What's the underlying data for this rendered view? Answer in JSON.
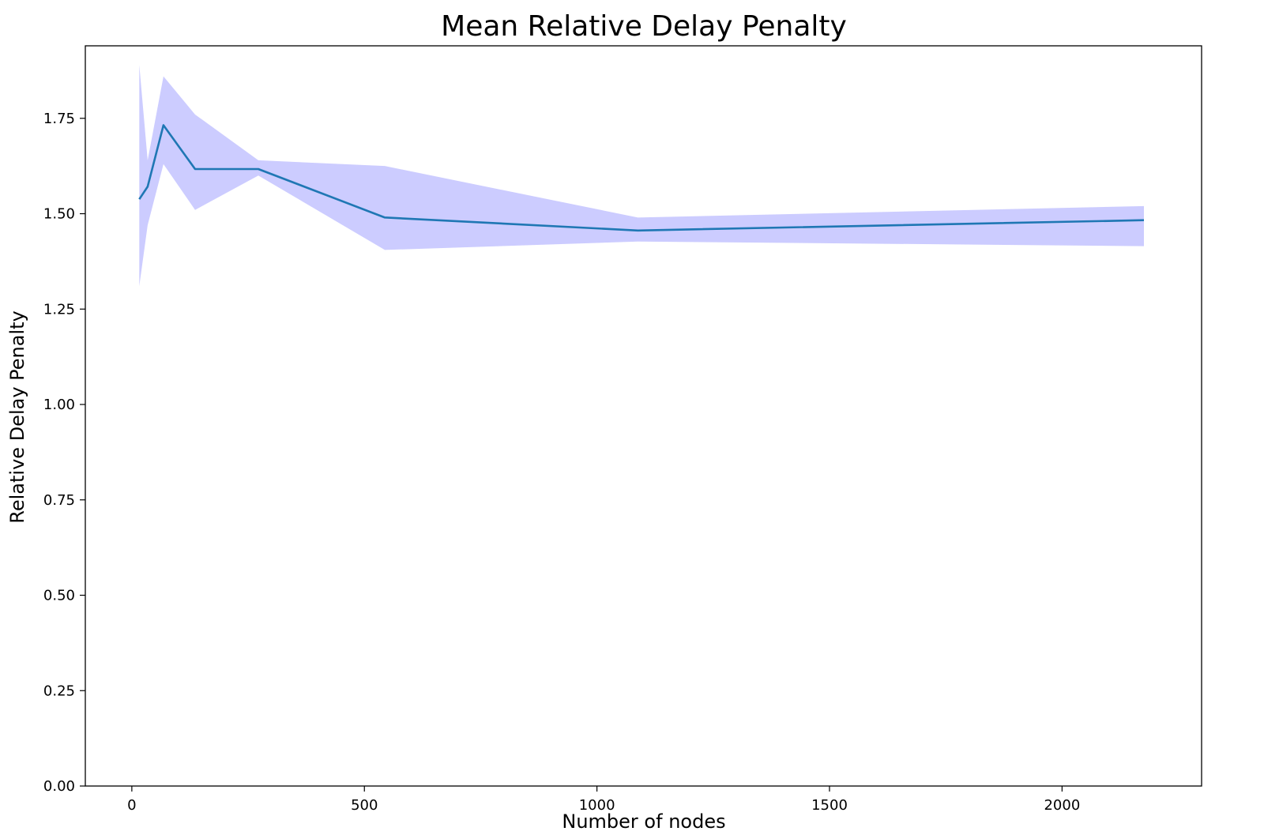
{
  "chart_data": {
    "type": "line",
    "title": "Mean Relative Delay Penalty",
    "xlabel": "Number of nodes",
    "ylabel": "Relative Delay Penalty",
    "xlim": [
      -100,
      2300
    ],
    "ylim": [
      0,
      1.94
    ],
    "xticks": [
      {
        "value": 0,
        "label": "0"
      },
      {
        "value": 500,
        "label": "500"
      },
      {
        "value": 1000,
        "label": "1000"
      },
      {
        "value": 1500,
        "label": "1500"
      },
      {
        "value": 2000,
        "label": "2000"
      }
    ],
    "yticks": [
      {
        "value": 0,
        "label": "0.00"
      },
      {
        "value": 0.25,
        "label": "0.25"
      },
      {
        "value": 0.5,
        "label": "0.50"
      },
      {
        "value": 0.75,
        "label": "0.75"
      },
      {
        "value": 1.0,
        "label": "1.00"
      },
      {
        "value": 1.25,
        "label": "1.25"
      },
      {
        "value": 1.5,
        "label": "1.50"
      },
      {
        "value": 1.75,
        "label": "1.75"
      }
    ],
    "grid": false,
    "legend": "none",
    "series": [
      {
        "x": [
          16,
          34,
          68,
          136,
          272,
          544,
          1088,
          2176
        ],
        "values": [
          1.538,
          1.571,
          1.732,
          1.617,
          1.617,
          1.49,
          1.456,
          1.483
        ],
        "lower": [
          1.31,
          1.47,
          1.63,
          1.51,
          1.6,
          1.405,
          1.427,
          1.415
        ],
        "upper": [
          1.89,
          1.64,
          1.86,
          1.76,
          1.64,
          1.625,
          1.49,
          1.52
        ]
      }
    ],
    "colors": {
      "line": "#1f77b4",
      "band": "#ccccff",
      "axes": "#000000"
    }
  }
}
